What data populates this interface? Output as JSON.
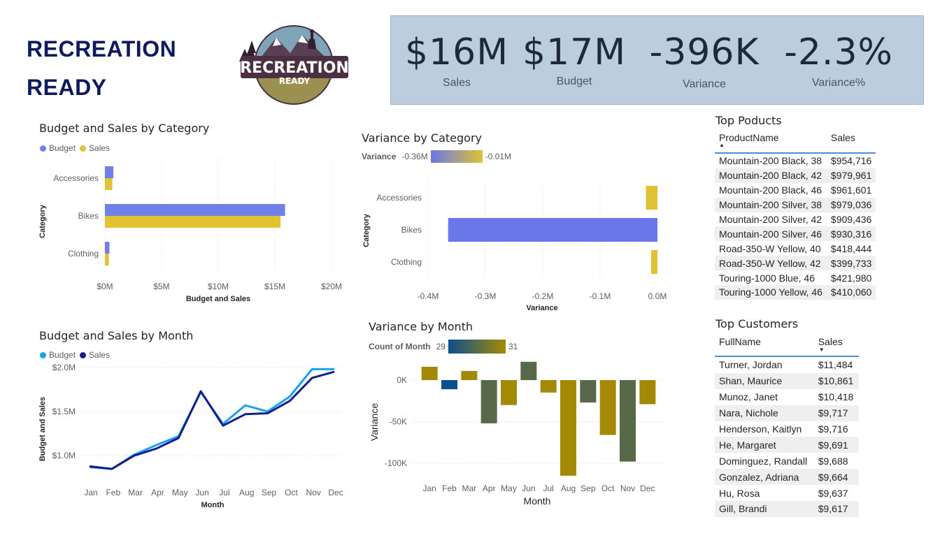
{
  "brand": {
    "line1": "RECREATION",
    "line2": "READY"
  },
  "logo": {
    "text_main": "RECREATION",
    "text_sub": "READY"
  },
  "kpis": [
    {
      "value": "$16M",
      "label": "Sales"
    },
    {
      "value": "$17M",
      "label": "Budget"
    },
    {
      "value": "-396K",
      "label": "Variance"
    },
    {
      "value": "-2.3%",
      "label": "Variance%"
    }
  ],
  "colors": {
    "budget_bar": "#6f81e8",
    "sales_bar": "#e1c233",
    "budget_line": "#1aa1f0",
    "sales_line": "#121f8c",
    "var_neg": "#6b76e8",
    "var_pos": "#dec234",
    "month_dark": "#0d4e8c",
    "month_olive": "#a38a06",
    "month_green": "#58694a"
  },
  "chart_labels": {
    "cat_title": "Budget and Sales by Category",
    "cat_legend_budget": "Budget",
    "cat_legend_sales": "Sales",
    "cat_xlabel": "Budget and Sales",
    "cat_ylabel": "Category",
    "var_title": "Variance by Category",
    "var_legend_label": "Variance",
    "var_legend_min": "-0.36M",
    "var_legend_max": "-0.01M",
    "var_xlabel": "Variance",
    "var_ylabel": "Category",
    "month_title": "Budget and Sales by Month",
    "month_legend_budget": "Budget",
    "month_legend_sales": "Sales",
    "month_xlabel": "Month",
    "month_ylabel": "Budget and Sales",
    "vmonth_title": "Variance by Month",
    "vmonth_legend_label": "Count of Month",
    "vmonth_legend_min": "29",
    "vmonth_legend_max": "31",
    "vmonth_xlabel": "Month",
    "vmonth_ylabel": "Variance"
  },
  "chart_data": [
    {
      "type": "bar",
      "orientation": "horizontal",
      "title": "Budget and Sales by Category",
      "categories": [
        "Accessories",
        "Bikes",
        "Clothing"
      ],
      "series": [
        {
          "name": "Budget",
          "values": [
            0.75,
            15.9,
            0.4
          ]
        },
        {
          "name": "Sales",
          "values": [
            0.65,
            15.5,
            0.35
          ]
        }
      ],
      "xticks": [
        "$0M",
        "$5M",
        "$10M",
        "$15M",
        "$20M"
      ],
      "xlim": [
        0,
        20
      ],
      "xlabel": "Budget and Sales",
      "ylabel": "Category"
    },
    {
      "type": "bar",
      "orientation": "horizontal",
      "title": "Variance by Category",
      "categories": [
        "Accessories",
        "Bikes",
        "Clothing"
      ],
      "values": [
        -0.02,
        -0.365,
        -0.011
      ],
      "xticks": [
        "-0.4M",
        "-0.3M",
        "-0.2M",
        "-0.1M",
        "0.0M"
      ],
      "xlim": [
        -0.4,
        0
      ],
      "xlabel": "Variance",
      "ylabel": "Category"
    },
    {
      "type": "line",
      "title": "Budget and Sales by Month",
      "categories": [
        "Jan",
        "Feb",
        "Mar",
        "Apr",
        "May",
        "Jun",
        "Jul",
        "Aug",
        "Sep",
        "Oct",
        "Nov",
        "Dec"
      ],
      "series": [
        {
          "name": "Budget",
          "values": [
            0.87,
            0.85,
            1.01,
            1.12,
            1.22,
            1.72,
            1.36,
            1.57,
            1.5,
            1.67,
            1.98,
            1.98
          ]
        },
        {
          "name": "Sales",
          "values": [
            0.88,
            0.85,
            1.0,
            1.08,
            1.2,
            1.73,
            1.34,
            1.47,
            1.48,
            1.62,
            1.88,
            1.95
          ]
        }
      ],
      "yticks": [
        "$1.0M",
        "$1.5M",
        "$2.0M"
      ],
      "ylim": [
        0.78,
        2.03
      ],
      "xlabel": "Month",
      "ylabel": "Budget and Sales"
    },
    {
      "type": "bar",
      "title": "Variance by Month",
      "categories": [
        "Jan",
        "Feb",
        "Mar",
        "Apr",
        "May",
        "Jun",
        "Jul",
        "Aug",
        "Sep",
        "Oct",
        "Nov",
        "Dec"
      ],
      "values": [
        16000,
        -11000,
        11000,
        -52000,
        -30000,
        22000,
        -15000,
        -115000,
        -27000,
        -66000,
        -98000,
        -29000
      ],
      "count_of_month": [
        31,
        28,
        31,
        30,
        31,
        30,
        31,
        31,
        30,
        31,
        30,
        31
      ],
      "yticks": [
        "0K",
        "-50K",
        "-100K"
      ],
      "ylim": [
        -120000,
        30000
      ],
      "xlabel": "Month",
      "ylabel": "Variance"
    }
  ],
  "top_products": {
    "title": "Top Poducts",
    "columns": [
      "ProductName",
      "Sales"
    ],
    "rows": [
      [
        "Mountain-200 Black, 38",
        "$954,716"
      ],
      [
        "Mountain-200 Black, 42",
        "$979,961"
      ],
      [
        "Mountain-200 Black, 46",
        "$961,601"
      ],
      [
        "Mountain-200 Silver, 38",
        "$979,036"
      ],
      [
        "Mountain-200 Silver, 42",
        "$909,436"
      ],
      [
        "Mountain-200 Silver, 46",
        "$930,316"
      ],
      [
        "Road-350-W Yellow, 40",
        "$418,444"
      ],
      [
        "Road-350-W Yellow, 42",
        "$399,733"
      ],
      [
        "Touring-1000 Blue, 46",
        "$421,980"
      ],
      [
        "Touring-1000 Yellow, 46",
        "$410,060"
      ]
    ]
  },
  "top_customers": {
    "title": "Top Customers",
    "columns": [
      "FullName",
      "Sales"
    ],
    "rows": [
      [
        "Turner, Jordan",
        "$11,484"
      ],
      [
        "Shan, Maurice",
        "$10,861"
      ],
      [
        "Munoz, Janet",
        "$10,418"
      ],
      [
        "Nara, Nichole",
        "$9,717"
      ],
      [
        "Henderson, Kaitlyn",
        "$9,716"
      ],
      [
        "He, Margaret",
        "$9,691"
      ],
      [
        "Dominguez, Randall",
        "$9,688"
      ],
      [
        "Gonzalez, Adriana",
        "$9,664"
      ],
      [
        "Hu, Rosa",
        "$9,637"
      ],
      [
        "Gill, Brandi",
        "$9,617"
      ]
    ]
  }
}
